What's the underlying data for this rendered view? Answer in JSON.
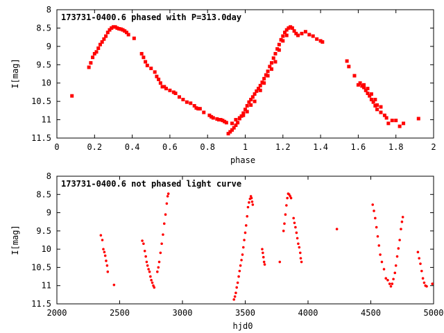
{
  "chart_data": [
    {
      "type": "scatter",
      "title": "173731-0400.6 phased with P=313.0day",
      "xlabel": "phase",
      "ylabel": "I[mag]",
      "xlim": [
        0,
        2
      ],
      "ylim": [
        11.5,
        8
      ],
      "y_inverted": true,
      "grid": false,
      "marker_color": "#ff0000",
      "x_ticks": [
        0,
        0.2,
        0.4,
        0.6,
        0.8,
        1,
        1.2,
        1.4,
        1.6,
        1.8,
        2
      ],
      "x_tick_labels": [
        "0",
        "0.2",
        "0.4",
        "0.6",
        "0.8",
        "1",
        "1.2",
        "1.4",
        "1.6",
        "1.8",
        "2"
      ],
      "y_ticks": [
        8,
        8.5,
        9,
        9.5,
        10,
        10.5,
        11,
        11.5
      ],
      "y_tick_labels": [
        "8",
        "8.5",
        "9",
        "9.5",
        "10",
        "10.5",
        "11",
        "11.5"
      ],
      "points": [
        [
          0.08,
          10.35
        ],
        [
          0.17,
          9.57
        ],
        [
          0.18,
          9.45
        ],
        [
          0.19,
          9.3
        ],
        [
          0.2,
          9.2
        ],
        [
          0.21,
          9.15
        ],
        [
          0.22,
          9.05
        ],
        [
          0.23,
          8.95
        ],
        [
          0.24,
          8.88
        ],
        [
          0.25,
          8.8
        ],
        [
          0.26,
          8.72
        ],
        [
          0.27,
          8.62
        ],
        [
          0.28,
          8.55
        ],
        [
          0.29,
          8.5
        ],
        [
          0.3,
          8.47
        ],
        [
          0.31,
          8.47
        ],
        [
          0.32,
          8.5
        ],
        [
          0.33,
          8.52
        ],
        [
          0.34,
          8.53
        ],
        [
          0.35,
          8.55
        ],
        [
          0.36,
          8.58
        ],
        [
          0.37,
          8.62
        ],
        [
          0.38,
          8.68
        ],
        [
          0.41,
          8.78
        ],
        [
          0.45,
          9.2
        ],
        [
          0.46,
          9.3
        ],
        [
          0.47,
          9.42
        ],
        [
          0.48,
          9.52
        ],
        [
          0.5,
          9.6
        ],
        [
          0.52,
          9.7
        ],
        [
          0.53,
          9.82
        ],
        [
          0.54,
          9.9
        ],
        [
          0.55,
          10.0
        ],
        [
          0.56,
          10.1
        ],
        [
          0.57,
          10.1
        ],
        [
          0.58,
          10.15
        ],
        [
          0.6,
          10.2
        ],
        [
          0.62,
          10.25
        ],
        [
          0.63,
          10.28
        ],
        [
          0.65,
          10.38
        ],
        [
          0.67,
          10.45
        ],
        [
          0.69,
          10.52
        ],
        [
          0.71,
          10.55
        ],
        [
          0.73,
          10.62
        ],
        [
          0.74,
          10.68
        ],
        [
          0.75,
          10.7
        ],
        [
          0.76,
          10.7
        ],
        [
          0.78,
          10.8
        ],
        [
          0.81,
          10.88
        ],
        [
          0.82,
          10.92
        ],
        [
          0.83,
          10.95
        ],
        [
          0.85,
          10.98
        ],
        [
          0.86,
          11.0
        ],
        [
          0.87,
          11.0
        ],
        [
          0.88,
          11.02
        ],
        [
          0.89,
          11.05
        ],
        [
          0.9,
          11.08
        ],
        [
          0.91,
          11.38
        ],
        [
          0.92,
          11.33
        ],
        [
          0.93,
          11.28
        ],
        [
          0.94,
          11.22
        ],
        [
          0.95,
          11.15
        ],
        [
          0.96,
          11.08
        ],
        [
          0.97,
          10.97
        ],
        [
          0.98,
          10.9
        ],
        [
          0.99,
          10.82
        ],
        [
          1.0,
          10.72
        ],
        [
          1.01,
          10.62
        ],
        [
          1.02,
          10.52
        ],
        [
          1.03,
          10.45
        ],
        [
          1.04,
          10.38
        ],
        [
          1.05,
          10.3
        ],
        [
          1.06,
          10.22
        ],
        [
          1.07,
          10.15
        ],
        [
          1.08,
          10.07
        ],
        [
          1.09,
          9.98
        ],
        [
          1.1,
          9.88
        ],
        [
          1.11,
          9.78
        ],
        [
          1.12,
          9.68
        ],
        [
          1.13,
          9.55
        ],
        [
          1.14,
          9.45
        ],
        [
          1.15,
          9.32
        ],
        [
          1.16,
          9.2
        ],
        [
          1.17,
          9.07
        ],
        [
          1.18,
          8.95
        ],
        [
          1.19,
          8.82
        ],
        [
          1.2,
          8.72
        ],
        [
          1.21,
          8.62
        ],
        [
          1.22,
          8.55
        ],
        [
          1.23,
          8.5
        ],
        [
          1.24,
          8.47
        ],
        [
          1.25,
          8.5
        ],
        [
          1.26,
          8.58
        ],
        [
          1.27,
          8.65
        ],
        [
          1.28,
          8.7
        ],
        [
          1.3,
          8.65
        ],
        [
          1.32,
          8.6
        ],
        [
          1.34,
          8.68
        ],
        [
          1.36,
          8.72
        ],
        [
          1.38,
          8.8
        ],
        [
          1.4,
          8.85
        ],
        [
          1.41,
          8.88
        ],
        [
          0.93,
          11.1
        ],
        [
          0.95,
          11.0
        ],
        [
          0.97,
          10.95
        ],
        [
          0.99,
          10.88
        ],
        [
          1.01,
          10.78
        ],
        [
          1.03,
          10.6
        ],
        [
          1.05,
          10.5
        ],
        [
          1.08,
          10.2
        ],
        [
          1.1,
          10.0
        ],
        [
          1.12,
          9.8
        ],
        [
          1.14,
          9.62
        ],
        [
          1.16,
          9.42
        ],
        [
          1.18,
          9.1
        ],
        [
          1.2,
          8.85
        ],
        [
          1.22,
          8.7
        ],
        [
          1.54,
          9.4
        ],
        [
          1.55,
          9.55
        ],
        [
          1.58,
          9.8
        ],
        [
          1.6,
          10.05
        ],
        [
          1.61,
          10.0
        ],
        [
          1.62,
          10.08
        ],
        [
          1.63,
          10.12
        ],
        [
          1.64,
          10.2
        ],
        [
          1.65,
          10.28
        ],
        [
          1.66,
          10.35
        ],
        [
          1.67,
          10.45
        ],
        [
          1.68,
          10.52
        ],
        [
          1.69,
          10.62
        ],
        [
          1.7,
          10.72
        ],
        [
          1.72,
          10.8
        ],
        [
          1.74,
          10.88
        ],
        [
          1.75,
          10.95
        ],
        [
          1.76,
          11.1
        ],
        [
          1.78,
          11.02
        ],
        [
          1.8,
          11.02
        ],
        [
          1.82,
          11.18
        ],
        [
          1.84,
          11.1
        ],
        [
          1.92,
          10.97
        ],
        [
          1.63,
          10.05
        ],
        [
          1.65,
          10.15
        ],
        [
          1.67,
          10.3
        ],
        [
          1.69,
          10.45
        ],
        [
          1.7,
          10.6
        ],
        [
          1.72,
          10.65
        ]
      ]
    },
    {
      "type": "scatter",
      "title": "173731-0400.6 not phased light curve",
      "xlabel": "hjd0",
      "ylabel": "I[mag]",
      "xlim": [
        2000,
        5000
      ],
      "ylim": [
        11.5,
        8
      ],
      "y_inverted": true,
      "grid": false,
      "marker_color": "#ff0000",
      "x_ticks": [
        2000,
        2500,
        3000,
        3500,
        4000,
        4500,
        5000
      ],
      "x_tick_labels": [
        "2000",
        "2500",
        "3000",
        "3500",
        "4000",
        "4500",
        "5000"
      ],
      "y_ticks": [
        8,
        8.5,
        9,
        9.5,
        10,
        10.5,
        11,
        11.5
      ],
      "y_tick_labels": [
        "8",
        "8.5",
        "9",
        "9.5",
        "10",
        "10.5",
        "11",
        "11.5"
      ],
      "points": [
        [
          2350,
          9.62
        ],
        [
          2362,
          9.75
        ],
        [
          2370,
          10.0
        ],
        [
          2378,
          10.08
        ],
        [
          2385,
          10.18
        ],
        [
          2392,
          10.32
        ],
        [
          2400,
          10.45
        ],
        [
          2405,
          10.62
        ],
        [
          2455,
          10.98
        ],
        [
          2680,
          9.77
        ],
        [
          2690,
          9.85
        ],
        [
          2700,
          10.05
        ],
        [
          2708,
          10.2
        ],
        [
          2715,
          10.35
        ],
        [
          2722,
          10.45
        ],
        [
          2730,
          10.55
        ],
        [
          2738,
          10.62
        ],
        [
          2745,
          10.75
        ],
        [
          2752,
          10.85
        ],
        [
          2760,
          10.92
        ],
        [
          2768,
          11.0
        ],
        [
          2775,
          11.05
        ],
        [
          2800,
          10.62
        ],
        [
          2808,
          10.5
        ],
        [
          2815,
          10.35
        ],
        [
          2825,
          10.1
        ],
        [
          2835,
          9.85
        ],
        [
          2845,
          9.6
        ],
        [
          2855,
          9.3
        ],
        [
          2865,
          9.05
        ],
        [
          2875,
          8.75
        ],
        [
          2882,
          8.55
        ],
        [
          2888,
          8.48
        ],
        [
          3410,
          11.38
        ],
        [
          3418,
          11.3
        ],
        [
          3425,
          11.2
        ],
        [
          3432,
          11.05
        ],
        [
          3440,
          10.92
        ],
        [
          3448,
          10.75
        ],
        [
          3455,
          10.6
        ],
        [
          3462,
          10.45
        ],
        [
          3470,
          10.3
        ],
        [
          3478,
          10.15
        ],
        [
          3485,
          9.95
        ],
        [
          3492,
          9.75
        ],
        [
          3500,
          9.55
        ],
        [
          3507,
          9.35
        ],
        [
          3515,
          9.1
        ],
        [
          3522,
          8.85
        ],
        [
          3530,
          8.72
        ],
        [
          3538,
          8.62
        ],
        [
          3545,
          8.55
        ],
        [
          3550,
          8.6
        ],
        [
          3555,
          8.7
        ],
        [
          3560,
          8.78
        ],
        [
          3635,
          10.0
        ],
        [
          3640,
          10.1
        ],
        [
          3645,
          10.22
        ],
        [
          3650,
          10.35
        ],
        [
          3655,
          10.42
        ],
        [
          3775,
          10.35
        ],
        [
          3805,
          9.5
        ],
        [
          3812,
          9.3
        ],
        [
          3820,
          9.05
        ],
        [
          3828,
          8.8
        ],
        [
          3835,
          8.6
        ],
        [
          3842,
          8.48
        ],
        [
          3850,
          8.5
        ],
        [
          3858,
          8.55
        ],
        [
          3865,
          8.6
        ],
        [
          3885,
          9.15
        ],
        [
          3892,
          9.28
        ],
        [
          3900,
          9.4
        ],
        [
          3908,
          9.55
        ],
        [
          3915,
          9.7
        ],
        [
          3922,
          9.85
        ],
        [
          3930,
          9.95
        ],
        [
          3938,
          10.1
        ],
        [
          3942,
          10.25
        ],
        [
          3948,
          10.35
        ],
        [
          4230,
          9.45
        ],
        [
          4515,
          8.78
        ],
        [
          4525,
          8.95
        ],
        [
          4535,
          9.15
        ],
        [
          4545,
          9.4
        ],
        [
          4555,
          9.65
        ],
        [
          4565,
          9.9
        ],
        [
          4575,
          10.15
        ],
        [
          4588,
          10.35
        ],
        [
          4605,
          10.55
        ],
        [
          4620,
          10.8
        ],
        [
          4635,
          10.85
        ],
        [
          4650,
          10.95
        ],
        [
          4660,
          11.02
        ],
        [
          4670,
          10.95
        ],
        [
          4680,
          10.82
        ],
        [
          4692,
          10.65
        ],
        [
          4700,
          10.45
        ],
        [
          4710,
          10.2
        ],
        [
          4720,
          9.98
        ],
        [
          4730,
          9.75
        ],
        [
          4740,
          9.45
        ],
        [
          4748,
          9.25
        ],
        [
          4755,
          9.12
        ],
        [
          4875,
          10.08
        ],
        [
          4885,
          10.25
        ],
        [
          4895,
          10.4
        ],
        [
          4905,
          10.6
        ],
        [
          4915,
          10.8
        ],
        [
          4925,
          10.92
        ],
        [
          4935,
          11.0
        ],
        [
          4945,
          11.02
        ],
        [
          4990,
          10.95
        ]
      ]
    }
  ]
}
